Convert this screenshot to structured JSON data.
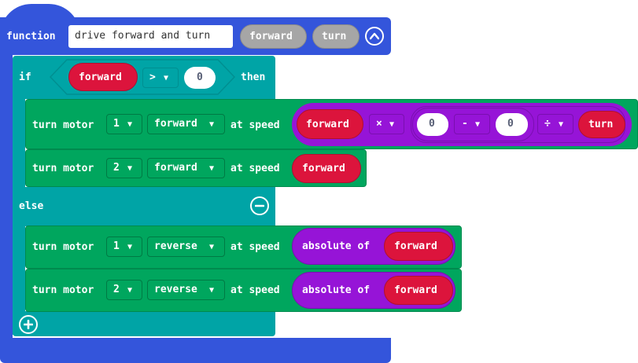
{
  "function_block": {
    "keyword": "function",
    "name": "drive forward and turn",
    "params": [
      "forward",
      "turn"
    ]
  },
  "if_block": {
    "if_label": "if",
    "condition": {
      "variable": "forward",
      "operator": ">",
      "value": "0"
    },
    "then_label": "then",
    "else_label": "else"
  },
  "then_statements": [
    {
      "label": "turn motor",
      "motor": "1",
      "direction": "forward",
      "at_speed": "at speed",
      "speed_expr": {
        "var1": "forward",
        "op1": "×",
        "num1": "0",
        "op2": "-",
        "num2": "0",
        "op3": "÷",
        "var2": "turn"
      }
    },
    {
      "label": "turn motor",
      "motor": "2",
      "direction": "forward",
      "at_speed": "at speed",
      "speed_var": "forward"
    }
  ],
  "else_statements": [
    {
      "label": "turn motor",
      "motor": "1",
      "direction": "reverse",
      "at_speed": "at speed",
      "func": "absolute of",
      "arg": "forward"
    },
    {
      "label": "turn motor",
      "motor": "2",
      "direction": "reverse",
      "at_speed": "at speed",
      "func": "absolute of",
      "arg": "forward"
    }
  ],
  "colors": {
    "function": "#3455db",
    "logic": "#00a4a6",
    "motor": "#00a65e",
    "variable": "#dc143c",
    "math": "#9614d7",
    "param": "#a6a6a6"
  },
  "icons": {
    "collapse": "chevron-up-icon",
    "remove_else": "minus-circle-icon",
    "add_else": "plus-circle-icon",
    "dropdown": "triangle-down-icon"
  }
}
